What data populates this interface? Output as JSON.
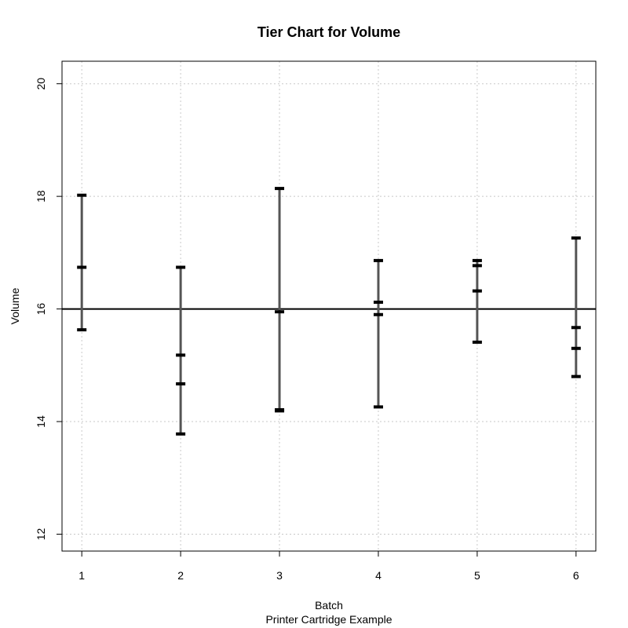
{
  "chart_data": {
    "type": "tier",
    "title": "Tier Chart for Volume",
    "xlabel": "Batch",
    "sub_label": "Printer Cartridge Example",
    "ylabel": "Volume",
    "categories": [
      "1",
      "2",
      "3",
      "4",
      "5",
      "6"
    ],
    "y_ticks": [
      "12",
      "14",
      "16",
      "18",
      "20"
    ],
    "xlim": [
      0.8,
      6.2
    ],
    "ylim": [
      11.7,
      20.4
    ],
    "grid": true,
    "reference_line": 16,
    "batches": [
      {
        "batch": "1",
        "observations": [
          18.02,
          16.74,
          15.63
        ]
      },
      {
        "batch": "2",
        "observations": [
          16.74,
          15.18,
          14.67,
          13.78
        ]
      },
      {
        "batch": "3",
        "observations": [
          18.14,
          15.95,
          14.21,
          14.19
        ]
      },
      {
        "batch": "4",
        "observations": [
          16.86,
          16.12,
          15.9,
          14.26
        ]
      },
      {
        "batch": "5",
        "observations": [
          16.86,
          16.77,
          16.32,
          15.41
        ]
      },
      {
        "batch": "6",
        "observations": [
          17.26,
          15.67,
          15.3,
          14.8
        ]
      }
    ],
    "colors": {
      "range_line": "#555555",
      "tick": "#000000",
      "reference": "#000000",
      "grid": "#c8c8c8",
      "frame": "#000000"
    }
  }
}
